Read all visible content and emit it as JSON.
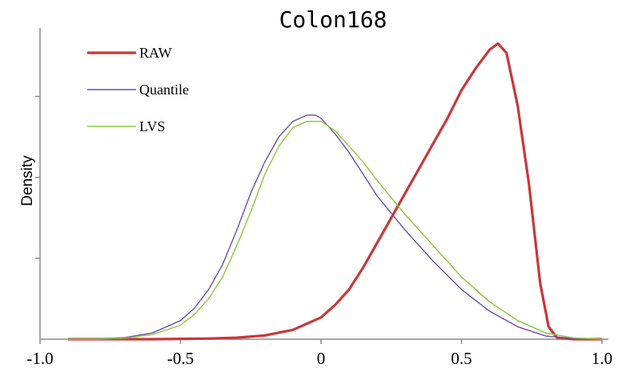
{
  "chart_data": {
    "type": "line",
    "title": "Colon168",
    "xlabel": "",
    "ylabel": "Density",
    "xlim": [
      -1.0,
      1.0
    ],
    "ylim": [
      0,
      1
    ],
    "xticks": [
      -1.0,
      -0.5,
      0,
      0.5,
      1.0
    ],
    "xtick_labels": [
      "-1.0",
      "-0.5",
      "0",
      "0.5",
      "1.0"
    ],
    "yticks": [
      0.26,
      0.52,
      0.78
    ],
    "grid": false,
    "legend_position": "top-left",
    "series": [
      {
        "name": "RAW",
        "color": "#c8373a",
        "x": [
          -0.9,
          -0.6,
          -0.4,
          -0.3,
          -0.2,
          -0.1,
          0.0,
          0.05,
          0.1,
          0.15,
          0.2,
          0.25,
          0.3,
          0.35,
          0.4,
          0.45,
          0.5,
          0.55,
          0.6,
          0.63,
          0.66,
          0.7,
          0.74,
          0.78,
          0.81,
          0.84,
          0.9,
          1.0
        ],
        "y": [
          0.0,
          0.0,
          0.002,
          0.005,
          0.012,
          0.03,
          0.07,
          0.11,
          0.16,
          0.23,
          0.31,
          0.39,
          0.47,
          0.55,
          0.63,
          0.71,
          0.8,
          0.87,
          0.93,
          0.95,
          0.92,
          0.75,
          0.5,
          0.18,
          0.04,
          0.005,
          0.0,
          0.0
        ]
      },
      {
        "name": "Quantile",
        "color": "#6a50a8",
        "x": [
          -0.9,
          -0.8,
          -0.7,
          -0.6,
          -0.5,
          -0.45,
          -0.4,
          -0.35,
          -0.3,
          -0.25,
          -0.2,
          -0.15,
          -0.1,
          -0.05,
          -0.02,
          0.0,
          0.05,
          0.1,
          0.15,
          0.2,
          0.3,
          0.4,
          0.5,
          0.6,
          0.7,
          0.8,
          0.9,
          1.0
        ],
        "y": [
          0.0,
          0.001,
          0.005,
          0.02,
          0.06,
          0.1,
          0.16,
          0.24,
          0.35,
          0.47,
          0.57,
          0.65,
          0.7,
          0.72,
          0.72,
          0.71,
          0.66,
          0.6,
          0.53,
          0.46,
          0.35,
          0.25,
          0.16,
          0.09,
          0.04,
          0.01,
          0.002,
          0.0
        ]
      },
      {
        "name": "LVS",
        "color": "#8dc63f",
        "x": [
          -0.9,
          -0.8,
          -0.7,
          -0.6,
          -0.5,
          -0.45,
          -0.4,
          -0.35,
          -0.3,
          -0.25,
          -0.2,
          -0.15,
          -0.1,
          -0.05,
          0.0,
          0.05,
          0.1,
          0.15,
          0.2,
          0.3,
          0.4,
          0.5,
          0.6,
          0.7,
          0.8,
          0.9,
          1.0
        ],
        "y": [
          0.0,
          0.0,
          0.003,
          0.015,
          0.045,
          0.08,
          0.13,
          0.2,
          0.3,
          0.41,
          0.53,
          0.62,
          0.68,
          0.7,
          0.7,
          0.67,
          0.62,
          0.57,
          0.51,
          0.4,
          0.3,
          0.2,
          0.12,
          0.06,
          0.02,
          0.004,
          0.0
        ]
      }
    ]
  }
}
